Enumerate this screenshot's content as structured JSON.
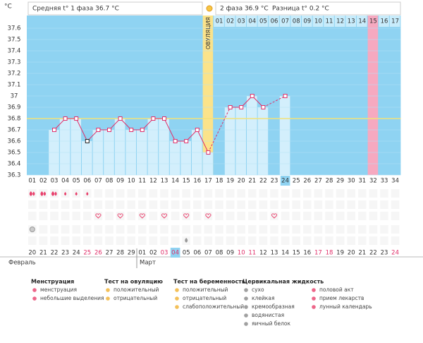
{
  "header": {
    "unit": "°C",
    "phase1": "Средняя t° 1 фаза 36.7 °C",
    "phase2": "2 фаза 36.9 °C",
    "diff": "Разница t° 0.2 °C"
  },
  "chart_data": {
    "type": "line",
    "categories": [
      "01",
      "02",
      "03",
      "04",
      "05",
      "06",
      "07",
      "08",
      "09",
      "10",
      "11",
      "12",
      "13",
      "14",
      "15",
      "16",
      "17",
      "18",
      "19",
      "20",
      "21",
      "22",
      "23",
      "24",
      "25",
      "26",
      "27",
      "28",
      "29",
      "30",
      "31",
      "32",
      "33",
      "34"
    ],
    "values": [
      null,
      null,
      36.7,
      36.8,
      36.8,
      36.6,
      36.7,
      36.7,
      36.8,
      36.7,
      36.7,
      36.8,
      36.8,
      36.6,
      36.6,
      36.7,
      36.5,
      null,
      36.9,
      36.9,
      37.0,
      36.9,
      null,
      37.0,
      null,
      null,
      null,
      null,
      null,
      null,
      null,
      null,
      null,
      null
    ],
    "color": "#e0306a",
    "ylim": [
      36.3,
      37.7
    ],
    "yticks": [
      36.3,
      36.4,
      36.5,
      36.6,
      36.7,
      36.8,
      36.9,
      37,
      37.1,
      37.2,
      37.3,
      37.4,
      37.5,
      37.6
    ],
    "coverline": 36.8,
    "ovulation_label": "ОВУЛЯЦИЯ",
    "phase2_days": [
      "01",
      "02",
      "03",
      "04",
      "05",
      "06",
      "07",
      "08",
      "09",
      "10",
      "11",
      "12",
      "13",
      "14",
      "15",
      "16",
      "17"
    ],
    "dates": [
      "20",
      "21",
      "22",
      "23",
      "24",
      "25",
      "26",
      "27",
      "28",
      "29",
      "01",
      "02",
      "03",
      "04",
      "05",
      "06",
      "07",
      "08",
      "09",
      "10",
      "11",
      "12",
      "13",
      "14",
      "15",
      "16",
      "17",
      "18",
      "19",
      "20",
      "21",
      "22",
      "23",
      "24"
    ],
    "months": [
      "Февраль",
      "Март"
    ]
  },
  "legend": {
    "menstruation": {
      "title": "Менструация",
      "items": [
        "менструация",
        "небольшие выделения"
      ]
    },
    "ovulation_test": {
      "title": "Тест на овуляцию",
      "items": [
        "положительный",
        "отрицательный"
      ]
    },
    "pregnancy_test": {
      "title": "Тест на беременность",
      "items": [
        "положительный",
        "отрицательный",
        "слабоположительный"
      ]
    },
    "cervical": {
      "title": "Цервикальная жидкость",
      "items": [
        "сухо",
        "клейкая",
        "кремообразная",
        "водянистая",
        "яичный белок"
      ]
    },
    "other": {
      "items": [
        "половой акт",
        "прием лекарств",
        "лунный календарь"
      ]
    }
  }
}
